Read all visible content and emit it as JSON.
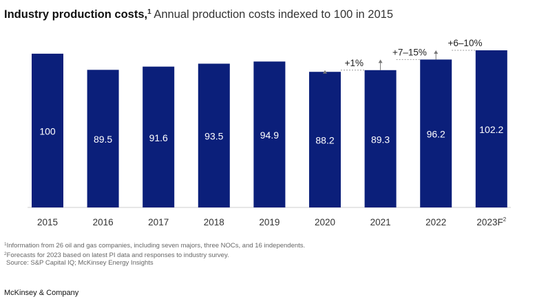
{
  "title": {
    "bold": "Industry production costs,",
    "footnote_ref": "1",
    "rest": " Annual production costs indexed to 100 in 2015"
  },
  "chart_data": {
    "type": "bar",
    "categories": [
      "2015",
      "2016",
      "2017",
      "2018",
      "2019",
      "2020",
      "2021",
      "2022",
      "2023F"
    ],
    "category_superscripts": [
      "",
      "",
      "",
      "",
      "",
      "",
      "",
      "",
      "2"
    ],
    "values": [
      100,
      89.5,
      91.6,
      93.5,
      94.9,
      88.2,
      89.3,
      96.2,
      102.2
    ],
    "value_labels": [
      "100",
      "89.5",
      "91.6",
      "93.5",
      "94.9",
      "88.2",
      "89.3",
      "96.2",
      "102.2"
    ],
    "ylim": [
      0,
      102.2
    ],
    "bar_color": "#0b1f7a",
    "grid": false,
    "annotations": [
      {
        "from": "2020",
        "to": "2021",
        "text": "+1%"
      },
      {
        "from": "2021",
        "to": "2022",
        "text": "+7–15%"
      },
      {
        "from": "2022",
        "to": "2023F",
        "text": "+6–10%"
      }
    ]
  },
  "footnotes": [
    {
      "marker": "1",
      "text": "Information from 26 oil and gas companies, including seven majors, three NOCs, and 16 independents."
    },
    {
      "marker": "2",
      "text": "Forecasts for 2023 based on latest PI data and responses to industry survey."
    }
  ],
  "source": "Source: S&P Capital IQ; McKinsey Energy Insights",
  "brand": "McKinsey & Company"
}
